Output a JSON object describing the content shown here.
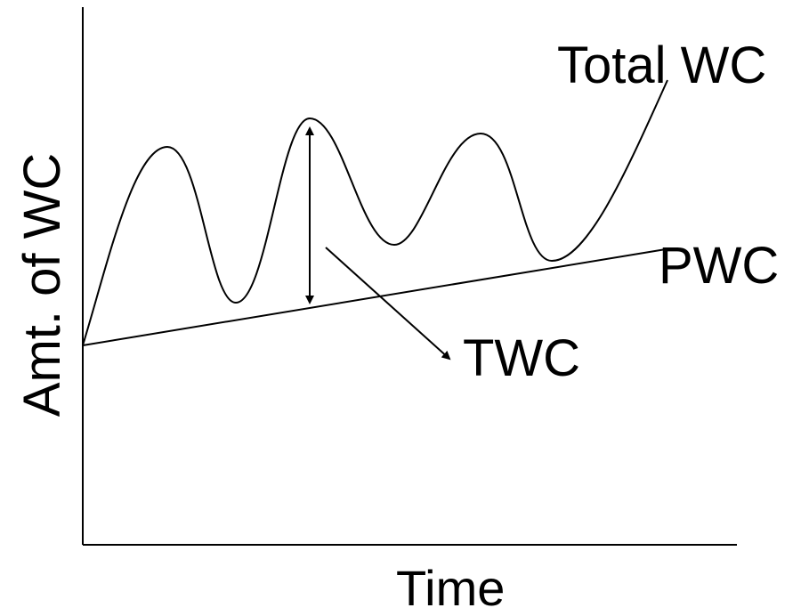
{
  "labels": {
    "total_wc": "Total WC",
    "pwc": "PWC",
    "twc": "TWC",
    "x_axis": "Time",
    "y_axis": "Amt. of WC"
  },
  "colors": {
    "line": "#000000",
    "background": "#ffffff"
  }
}
